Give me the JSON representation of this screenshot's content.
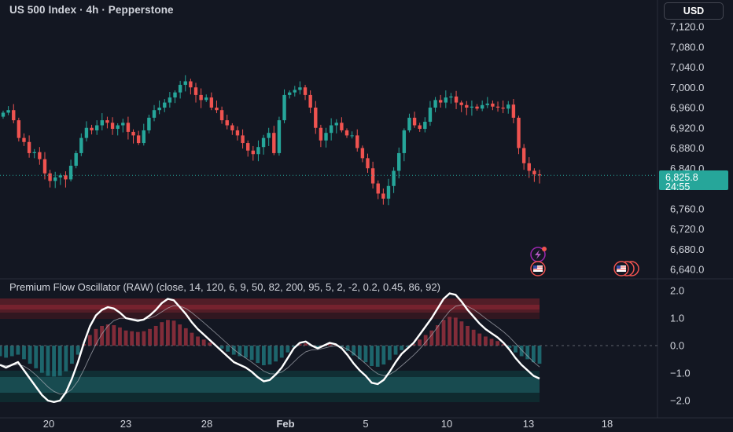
{
  "header": {
    "title": "US 500 Index · 4h · Pepperstone",
    "currency": "USD"
  },
  "price_scale": {
    "labels": [
      "7,120.0",
      "7,080.0",
      "7,040.0",
      "7,000.0",
      "6,960.0",
      "6,920.0",
      "6,880.0",
      "6,840.0",
      "6,760.0",
      "6,720.0",
      "6,680.0",
      "6,640.0"
    ],
    "current_price": "6,825.8",
    "countdown": "24:55"
  },
  "indicator": {
    "title": "Premium Flow Oscillator (RAW) (close, 14, 120, 6, 9, 50, 82, 200, 95, 5, 2, -2, 0.2, 0.45, 86, 92)",
    "scale_labels": [
      "2.0",
      "1.0",
      "0.0",
      "−1.0",
      "−2.0"
    ]
  },
  "time_axis": [
    "20",
    "23",
    "28",
    "Feb",
    "5",
    "10",
    "13",
    "18"
  ],
  "colors": {
    "background": "#131722",
    "up": "#26a69a",
    "down": "#ef5350",
    "oscillator": "#ffffff",
    "bear_zone": "#7a2330",
    "bull_zone": "#1a5558"
  },
  "chart_data": {
    "type": "candlestick",
    "title": "US 500 Index · 4h · Pepperstone",
    "ylim": [
      6620,
      7140
    ],
    "closes": [
      6950,
      6955,
      6935,
      6900,
      6892,
      6870,
      6872,
      6858,
      6830,
      6815,
      6822,
      6826,
      6818,
      6845,
      6870,
      6900,
      6920,
      6915,
      6925,
      6935,
      6930,
      6918,
      6925,
      6930,
      6912,
      6905,
      6890,
      6915,
      6940,
      6955,
      6960,
      6970,
      6980,
      6990,
      7005,
      7012,
      7000,
      6985,
      6975,
      6980,
      6960,
      6955,
      6935,
      6925,
      6915,
      6905,
      6890,
      6875,
      6868,
      6882,
      6900,
      6910,
      6870,
      6935,
      6985,
      6990,
      6995,
      7000,
      6985,
      6960,
      6920,
      6895,
      6910,
      6925,
      6930,
      6915,
      6905,
      6905,
      6880,
      6860,
      6840,
      6810,
      6790,
      6780,
      6805,
      6835,
      6870,
      6915,
      6940,
      6925,
      6918,
      6932,
      6960,
      6975,
      6970,
      6980,
      6982,
      6970,
      6965,
      6960,
      6962,
      6958,
      6965,
      6968,
      6962,
      6960,
      6958,
      6966,
      6940,
      6880,
      6850,
      6835,
      6828,
      6826
    ],
    "indicator_series": [
      {
        "name": "Premium Flow Oscillator",
        "values": [
          -0.7,
          -0.8,
          -0.7,
          -0.6,
          -0.9,
          -1.2,
          -1.5,
          -1.8,
          -2.0,
          -2.05,
          -2.0,
          -1.7,
          -1.2,
          -0.6,
          0.1,
          0.7,
          1.1,
          1.3,
          1.4,
          1.35,
          1.2,
          1.0,
          0.95,
          0.9,
          0.95,
          1.1,
          1.3,
          1.55,
          1.7,
          1.65,
          1.4,
          1.15,
          0.85,
          0.6,
          0.4,
          0.2,
          0.0,
          -0.2,
          -0.4,
          -0.6,
          -0.7,
          -0.8,
          -0.95,
          -1.15,
          -1.3,
          -1.25,
          -1.05,
          -0.8,
          -0.45,
          -0.1,
          0.1,
          0.15,
          0.0,
          -0.1,
          0.0,
          0.1,
          0.05,
          -0.1,
          -0.35,
          -0.65,
          -0.9,
          -1.1,
          -1.35,
          -1.4,
          -1.25,
          -0.95,
          -0.6,
          -0.3,
          -0.1,
          0.1,
          0.4,
          0.7,
          1.0,
          1.35,
          1.7,
          1.9,
          1.85,
          1.6,
          1.3,
          1.05,
          0.8,
          0.6,
          0.45,
          0.3,
          0.1,
          -0.15,
          -0.45,
          -0.7,
          -0.9,
          -1.1,
          -1.2
        ]
      }
    ]
  }
}
